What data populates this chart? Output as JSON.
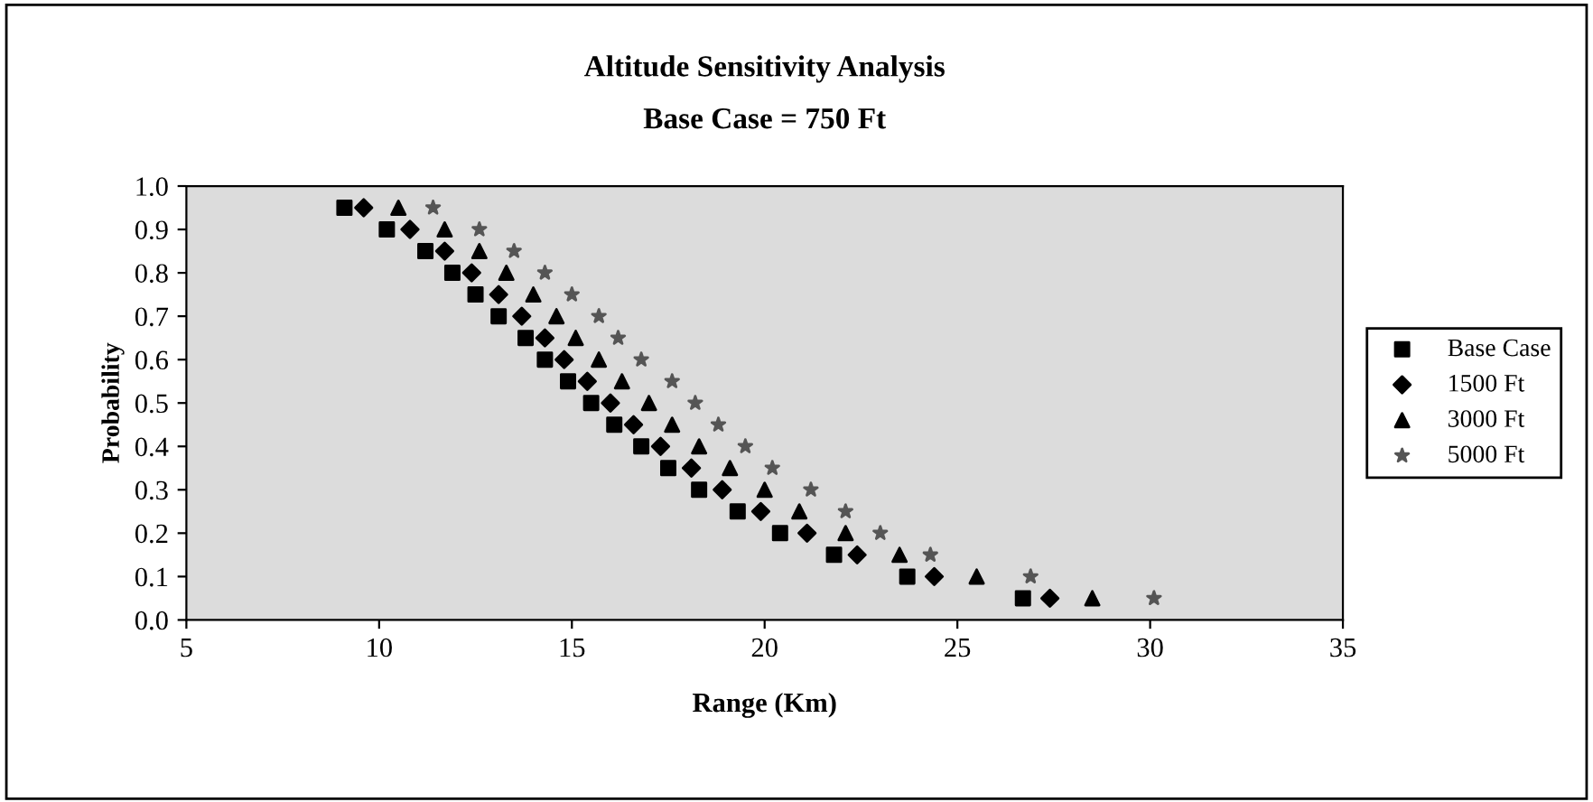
{
  "chart_data": {
    "type": "scatter",
    "title": "Altitude Sensitivity Analysis",
    "subtitle": "Base Case = 750 Ft",
    "xlabel": "Range (Km)",
    "ylabel": "Probability",
    "xlim": [
      5,
      35
    ],
    "xticks": [
      5,
      10,
      15,
      20,
      25,
      30,
      35
    ],
    "ylim": [
      0,
      1
    ],
    "yticks": [
      {
        "value": 0,
        "label": "0.0"
      },
      {
        "value": 0.1,
        "label": "0.1"
      },
      {
        "value": 0.2,
        "label": "0.2"
      },
      {
        "value": 0.3,
        "label": "0.3"
      },
      {
        "value": 0.4,
        "label": "0.4"
      },
      {
        "value": 0.5,
        "label": "0.5"
      },
      {
        "value": 0.6,
        "label": "0.6"
      },
      {
        "value": 0.7,
        "label": "0.7"
      },
      {
        "value": 0.8,
        "label": "0.8"
      },
      {
        "value": 0.9,
        "label": "0.9"
      },
      {
        "value": 1,
        "label": "1.0"
      }
    ],
    "grid": false,
    "legend": "right",
    "series": [
      {
        "name": "Base Case",
        "color": "#000000",
        "marker": "square",
        "x": [
          9.1,
          10.2,
          11.2,
          11.9,
          12.5,
          13.1,
          13.8,
          14.3,
          14.9,
          15.5,
          16.1,
          16.8,
          17.5,
          18.3,
          19.3,
          20.4,
          21.8,
          23.7,
          26.7
        ],
        "values": [
          0.95,
          0.9,
          0.85,
          0.8,
          0.75,
          0.7,
          0.65,
          0.6,
          0.55,
          0.5,
          0.45,
          0.4,
          0.35,
          0.3,
          0.25,
          0.2,
          0.15,
          0.1,
          0.05
        ]
      },
      {
        "name": "1500 Ft",
        "color": "#000000",
        "marker": "diamond",
        "x": [
          9.6,
          10.8,
          11.7,
          12.4,
          13.1,
          13.7,
          14.3,
          14.8,
          15.4,
          16.0,
          16.6,
          17.3,
          18.1,
          18.9,
          19.9,
          21.1,
          22.4,
          24.4,
          27.4
        ],
        "values": [
          0.95,
          0.9,
          0.85,
          0.8,
          0.75,
          0.7,
          0.65,
          0.6,
          0.55,
          0.5,
          0.45,
          0.4,
          0.35,
          0.3,
          0.25,
          0.2,
          0.15,
          0.1,
          0.05
        ]
      },
      {
        "name": "3000 Ft",
        "color": "#000000",
        "marker": "triangle",
        "x": [
          10.5,
          11.7,
          12.6,
          13.3,
          14.0,
          14.6,
          15.1,
          15.7,
          16.3,
          17.0,
          17.6,
          18.3,
          19.1,
          20.0,
          20.9,
          22.1,
          23.5,
          25.5,
          28.5
        ],
        "values": [
          0.95,
          0.9,
          0.85,
          0.8,
          0.75,
          0.7,
          0.65,
          0.6,
          0.55,
          0.5,
          0.45,
          0.4,
          0.35,
          0.3,
          0.25,
          0.2,
          0.15,
          0.1,
          0.05
        ]
      },
      {
        "name": "5000 Ft",
        "color": "#555555",
        "marker": "star",
        "x": [
          11.4,
          12.6,
          13.5,
          14.3,
          15.0,
          15.7,
          16.2,
          16.8,
          17.6,
          18.2,
          18.8,
          19.5,
          20.2,
          21.2,
          22.1,
          23.0,
          24.3,
          26.9,
          30.1
        ],
        "values": [
          0.95,
          0.9,
          0.85,
          0.8,
          0.75,
          0.7,
          0.65,
          0.6,
          0.55,
          0.5,
          0.45,
          0.4,
          0.35,
          0.3,
          0.25,
          0.2,
          0.15,
          0.1,
          0.05
        ]
      }
    ]
  }
}
